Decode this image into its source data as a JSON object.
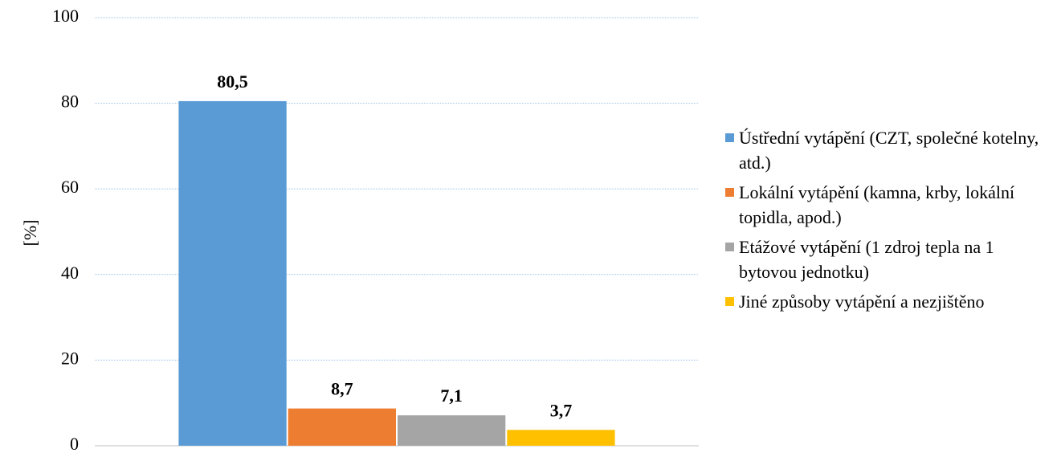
{
  "chart_data": {
    "type": "bar",
    "ylabel": "[%]",
    "categories": [
      null
    ],
    "series": [
      {
        "name": "Ústřední vytápění (CZT, společné kotelny, atd.)",
        "color": "#5b9bd5",
        "values": [
          80.5
        ],
        "value_labels": [
          "80,5"
        ]
      },
      {
        "name": "Lokální vytápění (kamna, krby, lokální topidla, apod.)",
        "color": "#ed7d31",
        "values": [
          8.7
        ],
        "value_labels": [
          "8,7"
        ]
      },
      {
        "name": "Etážové vytápění (1 zdroj tepla na 1 bytovou jednotku)",
        "color": "#a5a5a5",
        "values": [
          7.1
        ],
        "value_labels": [
          "7,1"
        ]
      },
      {
        "name": "Jiné způsoby vytápění a nezjištěno",
        "color": "#ffc000",
        "values": [
          3.7
        ],
        "value_labels": [
          "3,7"
        ]
      }
    ],
    "ylim": [
      0,
      100
    ],
    "yticks": [
      0,
      20,
      40,
      60,
      80,
      100
    ],
    "grid": true,
    "legend": "right"
  }
}
